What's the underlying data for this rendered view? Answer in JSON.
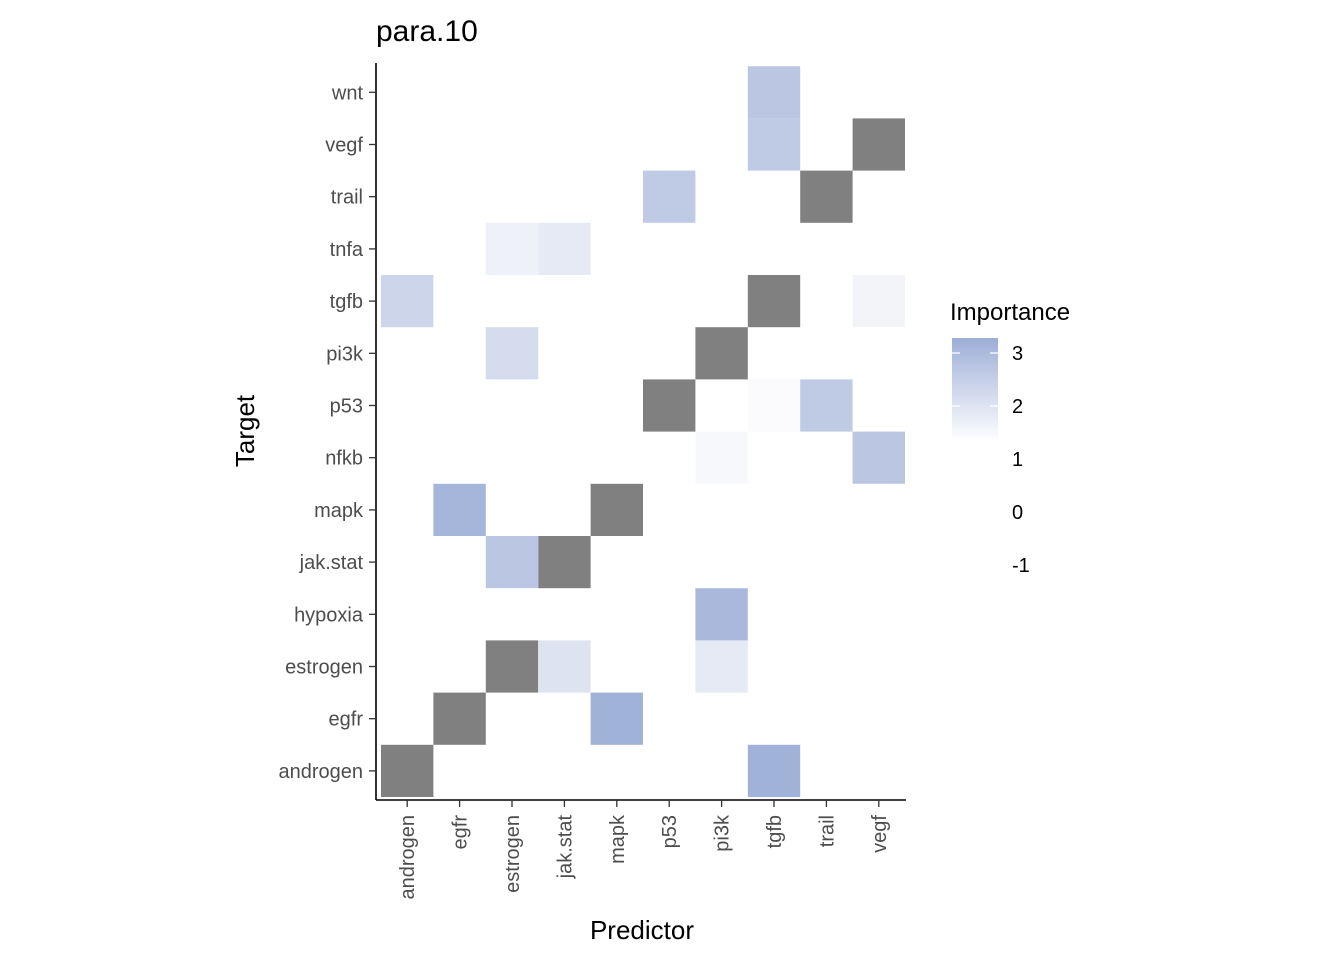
{
  "chart_data": {
    "type": "heatmap",
    "title": "para.10",
    "xlabel": "Predictor",
    "ylabel": "Target",
    "x_categories": [
      "androgen",
      "egfr",
      "estrogen",
      "jak.stat",
      "mapk",
      "p53",
      "pi3k",
      "tgfb",
      "trail",
      "vegf"
    ],
    "y_categories": [
      "androgen",
      "egfr",
      "estrogen",
      "hypoxia",
      "jak.stat",
      "mapk",
      "nfkb",
      "p53",
      "pi3k",
      "tgfb",
      "tnfa",
      "trail",
      "vegf",
      "wnt"
    ],
    "diagonal_color": "#808080",
    "color_low": "#ffffff",
    "color_high": "#9daed6",
    "legend": {
      "title": "Importance",
      "labels": [
        "3",
        "2",
        "1",
        "0",
        "-1"
      ],
      "gradient_range": [
        1,
        3.3
      ],
      "position": "right"
    },
    "cells": [
      {
        "x": "androgen",
        "y": "androgen",
        "diagonal": true
      },
      {
        "x": "egfr",
        "y": "egfr",
        "diagonal": true
      },
      {
        "x": "estrogen",
        "y": "estrogen",
        "diagonal": true
      },
      {
        "x": "jak.stat",
        "y": "jak.stat",
        "diagonal": true
      },
      {
        "x": "mapk",
        "y": "mapk",
        "diagonal": true
      },
      {
        "x": "p53",
        "y": "p53",
        "diagonal": true
      },
      {
        "x": "pi3k",
        "y": "pi3k",
        "diagonal": true
      },
      {
        "x": "tgfb",
        "y": "tgfb",
        "diagonal": true
      },
      {
        "x": "trail",
        "y": "trail",
        "diagonal": true
      },
      {
        "x": "vegf",
        "y": "vegf",
        "diagonal": true
      },
      {
        "x": "tgfb",
        "y": "androgen",
        "value": 3.2
      },
      {
        "x": "mapk",
        "y": "egfr",
        "value": 3.2
      },
      {
        "x": "jak.stat",
        "y": "estrogen",
        "value": 1.8
      },
      {
        "x": "pi3k",
        "y": "estrogen",
        "value": 1.6
      },
      {
        "x": "pi3k",
        "y": "hypoxia",
        "value": 3.0
      },
      {
        "x": "estrogen",
        "y": "jak.stat",
        "value": 2.6
      },
      {
        "x": "egfr",
        "y": "mapk",
        "value": 3.1
      },
      {
        "x": "pi3k",
        "y": "nfkb",
        "value": 1.2
      },
      {
        "x": "vegf",
        "y": "nfkb",
        "value": 2.6
      },
      {
        "x": "tgfb",
        "y": "p53",
        "value": 1.1
      },
      {
        "x": "trail",
        "y": "p53",
        "value": 2.5
      },
      {
        "x": "estrogen",
        "y": "pi3k",
        "value": 2.0
      },
      {
        "x": "vegf",
        "y": "pi3k",
        "value": 1.0
      },
      {
        "x": "androgen",
        "y": "tgfb",
        "value": 2.2
      },
      {
        "x": "vegf",
        "y": "tgfb",
        "value": 1.3
      },
      {
        "x": "estrogen",
        "y": "tnfa",
        "value": 1.4
      },
      {
        "x": "jak.stat",
        "y": "tnfa",
        "value": 1.6
      },
      {
        "x": "p53",
        "y": "trail",
        "value": 2.5
      },
      {
        "x": "tgfb",
        "y": "vegf",
        "value": 2.5
      },
      {
        "x": "tgfb",
        "y": "wnt",
        "value": 2.6
      }
    ]
  }
}
